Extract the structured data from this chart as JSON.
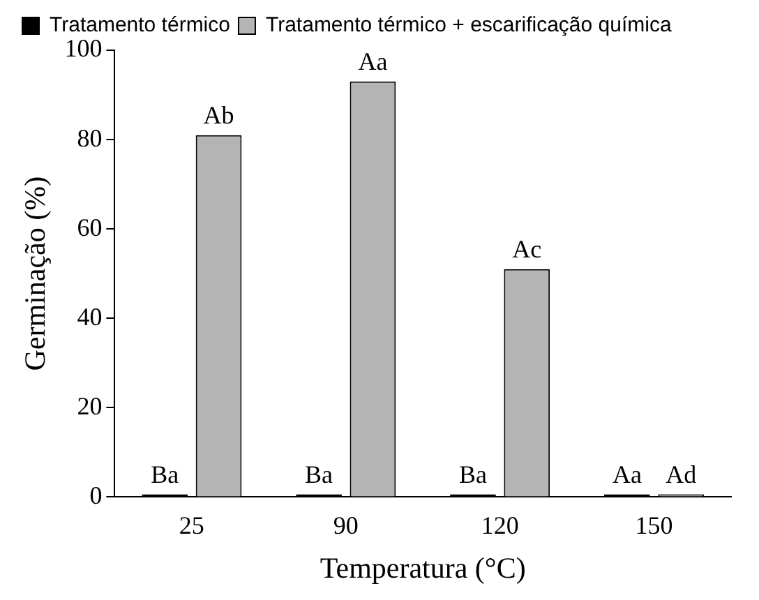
{
  "chart_data": {
    "type": "bar",
    "xlabel": "Temperatura (°C)",
    "ylabel": "Germinação (%)",
    "categories": [
      "25",
      "90",
      "120",
      "150"
    ],
    "series": [
      {
        "name": "Tratamento térmico",
        "color": "#000000",
        "values": [
          0,
          0,
          0,
          0
        ],
        "value_labels": [
          "Ba",
          "Ba",
          "Ba",
          "Aa"
        ]
      },
      {
        "name": "Tratamento térmico + escarificação química",
        "color": "#b4b4b4",
        "values": [
          81,
          93,
          51,
          0
        ],
        "value_labels": [
          "Ab",
          "Aa",
          "Ac",
          "Ad"
        ]
      }
    ],
    "ylim": [
      0,
      100
    ],
    "yticks": [
      0,
      20,
      40,
      60,
      80,
      100
    ],
    "grid": false,
    "legend": "top left"
  }
}
